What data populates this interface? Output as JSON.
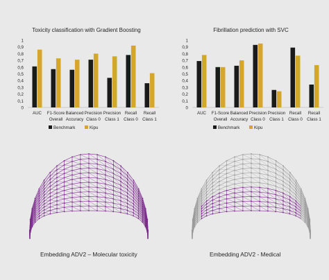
{
  "colors": {
    "background": "#e9e9ea",
    "benchmark": "#1a1a1a",
    "kipu": "#d4a72c",
    "axis": "#bfbfbf",
    "text": "#262626",
    "mesh_purple": "#7a2a8a",
    "mesh_gray": "#9a9a9a"
  },
  "chart_data": [
    {
      "type": "bar",
      "title": "Toxicity classification with Gradient Boosting",
      "categories": [
        [
          "AUC"
        ],
        [
          "F1-Score",
          "Overall"
        ],
        [
          "Balanced",
          "Accuracy"
        ],
        [
          "Precision",
          "Class 0"
        ],
        [
          "Precision",
          "Class 1"
        ],
        [
          "Recall",
          "Class 0"
        ],
        [
          "Recall",
          "Class 1"
        ]
      ],
      "series": [
        {
          "name": "Benchmark",
          "color": "#1a1a1a",
          "values": [
            0.61,
            0.57,
            0.56,
            0.71,
            0.44,
            0.78,
            0.36
          ]
        },
        {
          "name": "Kipu",
          "color": "#d4a72c",
          "values": [
            0.86,
            0.73,
            0.71,
            0.8,
            0.76,
            0.92,
            0.51
          ]
        }
      ],
      "ylim": [
        0,
        1
      ],
      "yticks": [
        "0",
        "0,1",
        "0,2",
        "0,3",
        "0,4",
        "0,5",
        "0,6",
        "0,7",
        "0,8",
        "0,9",
        "1"
      ],
      "grid": false,
      "legend_position": "bottom"
    },
    {
      "type": "bar",
      "title": "Fibrillation prediction with SVC",
      "categories": [
        [
          "AUC"
        ],
        [
          "F1-Score",
          "Overall"
        ],
        [
          "Balanced",
          "Accuracy"
        ],
        [
          "Precision",
          "Class 0"
        ],
        [
          "Precision",
          "Class 1"
        ],
        [
          "Recall",
          "Class 0"
        ],
        [
          "Recall",
          "Class 1"
        ]
      ],
      "series": [
        {
          "name": "Benchmark",
          "color": "#1a1a1a",
          "values": [
            0.69,
            0.6,
            0.62,
            0.93,
            0.26,
            0.89,
            0.34
          ]
        },
        {
          "name": "Kipu",
          "color": "#d4a72c",
          "values": [
            0.78,
            0.6,
            0.7,
            0.95,
            0.24,
            0.77,
            0.63
          ]
        }
      ],
      "ylim": [
        0,
        1
      ],
      "yticks": [
        "0",
        "0,1",
        "0,2",
        "0,3",
        "0,4",
        "0,5",
        "0,6",
        "0,7",
        "0,8",
        "0,9",
        "1"
      ],
      "grid": false,
      "legend_position": "bottom"
    }
  ],
  "embeddings": [
    {
      "caption": "Embedding ADV2 – Molecular toxicity",
      "style": "purple"
    },
    {
      "caption": "Embedding ADV2 - Medical",
      "style": "gray-purple"
    }
  ]
}
